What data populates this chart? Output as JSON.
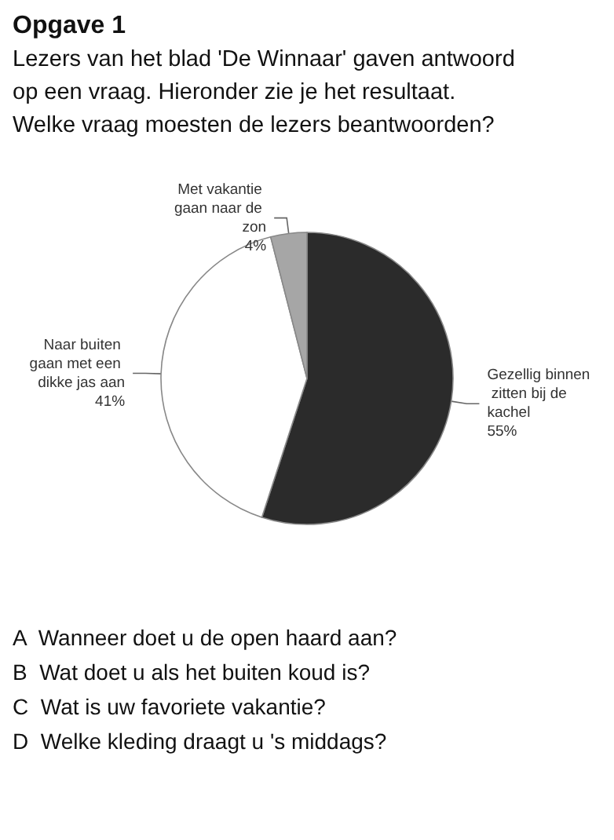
{
  "chart_data": {
    "type": "pie",
    "title": "Opgave 1",
    "subtitle": "Lezers van het blad 'De Winnaar' gaven antwoord op een vraag. Hieronder zie je het resultaat.\nWelke vraag moesten de lezers beantwoorden?",
    "categories": [
      "Gezellig binnen zitten bij de kachel",
      "Naar buiten gaan met een dikke jas aan",
      "Met vakantie gaan naar de zon"
    ],
    "values": [
      55,
      41,
      4
    ],
    "value_labels": [
      "55%",
      "41%",
      "4%"
    ],
    "colors": [
      "#2b2b2b",
      "#ffffff",
      "#a6a6a6"
    ],
    "legend": false,
    "annotations": [
      "A  Wanneer doet u de open haard aan?",
      "B  Wat doet u als het buiten koud is?",
      "C  Wat is uw favoriete vakantie?",
      "D  Welke kleding draagt u 's middags?"
    ]
  }
}
